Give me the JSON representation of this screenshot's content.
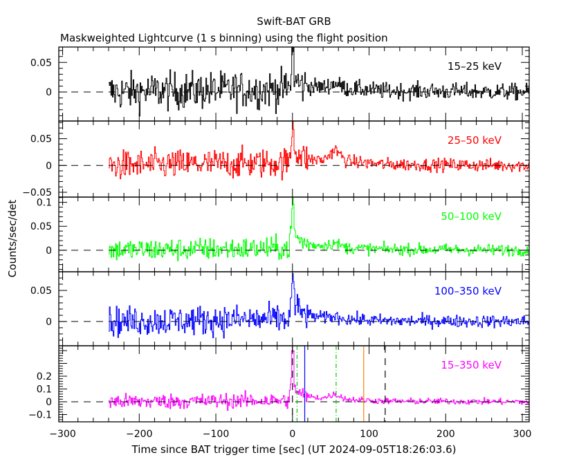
{
  "chart_data": {
    "type": "line",
    "title": "Swift-BAT GRB",
    "subtitle": "Maskweighted Lightcurve (1 s binning) using the flight position",
    "xlabel": "Time since BAT trigger time [sec] (UT 2024-09-05T18:26:03.6)",
    "ylabel": "Counts/sec/det",
    "xlim": [
      -305,
      309
    ],
    "x_ticks": [
      -300,
      -200,
      -100,
      0,
      100,
      200,
      300
    ],
    "x_tick_labels": [
      "−300",
      "−200",
      "−100",
      "0",
      "100",
      "200",
      "300"
    ],
    "data_start": -240,
    "bin_seconds": 1,
    "panels": [
      {
        "name": "15-25 keV",
        "label": "15–25 keV",
        "color": "#000000",
        "ylim": [
          -0.049,
          0.076
        ],
        "y_ticks": [
          0,
          0.05
        ],
        "y_tick_labels": [
          "0",
          "0.05"
        ],
        "profile_t": [
          -240,
          -5,
          0,
          3,
          10,
          20,
          40,
          55,
          70,
          120,
          309
        ],
        "profile_v": [
          0,
          0.005,
          0.045,
          0.02,
          0.012,
          0.01,
          0.008,
          0.015,
          0.006,
          0.002,
          0
        ],
        "noise": [
          0.016,
          0.007
        ]
      },
      {
        "name": "25-50 keV",
        "label": "25–50 keV",
        "color": "#ff0000",
        "ylim": [
          -0.059,
          0.083
        ],
        "y_ticks": [
          -0.05,
          0,
          0.05
        ],
        "y_tick_labels": [
          "−0.05",
          "0",
          "0.05"
        ],
        "profile_t": [
          -240,
          -5,
          0,
          3,
          10,
          20,
          40,
          55,
          70,
          120,
          309
        ],
        "profile_v": [
          0,
          0.005,
          0.055,
          0.03,
          0.018,
          0.012,
          0.01,
          0.03,
          0.008,
          0.002,
          0
        ],
        "noise": [
          0.014,
          0.006
        ]
      },
      {
        "name": "50-100 keV",
        "label": "50–100 keV",
        "color": "#00ff00",
        "ylim": [
          -0.045,
          0.111
        ],
        "y_ticks": [
          0,
          0.05,
          0.1
        ],
        "y_tick_labels": [
          "0",
          "0.05",
          "0.1"
        ],
        "profile_t": [
          -240,
          -5,
          0,
          3,
          10,
          20,
          40,
          55,
          70,
          120,
          309
        ],
        "profile_v": [
          0,
          0.004,
          0.07,
          0.03,
          0.02,
          0.012,
          0.01,
          0.015,
          0.005,
          0.002,
          0
        ],
        "noise": [
          0.012,
          0.006
        ]
      },
      {
        "name": "100-350 keV",
        "label": "100–350 keV",
        "color": "#0000ff",
        "ylim": [
          -0.039,
          0.08
        ],
        "y_ticks": [
          0,
          0.05
        ],
        "y_tick_labels": [
          "0",
          "0.05"
        ],
        "profile_t": [
          -240,
          -5,
          0,
          3,
          10,
          20,
          40,
          55,
          70,
          120,
          309
        ],
        "profile_v": [
          0,
          0.004,
          0.05,
          0.025,
          0.015,
          0.01,
          0.006,
          0.008,
          0.004,
          0.001,
          0
        ],
        "noise": [
          0.012,
          0.005
        ]
      },
      {
        "name": "15-350 keV",
        "label": "15–350 keV",
        "color": "#ff00ff",
        "ylim": [
          -0.157,
          0.438
        ],
        "y_ticks": [
          -0.1,
          0,
          0.1,
          0.2
        ],
        "y_tick_labels": [
          "−0.1",
          "0",
          "0.1",
          "0.2"
        ],
        "profile_t": [
          -240,
          -5,
          0,
          3,
          10,
          20,
          40,
          55,
          70,
          120,
          309
        ],
        "profile_v": [
          0,
          0.01,
          0.25,
          0.1,
          0.06,
          0.04,
          0.03,
          0.06,
          0.02,
          0.005,
          0
        ],
        "noise": [
          0.03,
          0.012
        ]
      }
    ],
    "markers": [
      {
        "t": 0,
        "style": "dashed",
        "color": "#000000"
      },
      {
        "t": 6,
        "style": "dashdot",
        "color": "#00cc00"
      },
      {
        "t": 16,
        "style": "solid",
        "color": "#0000ff"
      },
      {
        "t": 57,
        "style": "dashdot",
        "color": "#00cc00"
      },
      {
        "t": 93,
        "style": "solid",
        "color": "#ff8000"
      },
      {
        "t": 121,
        "style": "dashed",
        "color": "#000000"
      }
    ]
  }
}
